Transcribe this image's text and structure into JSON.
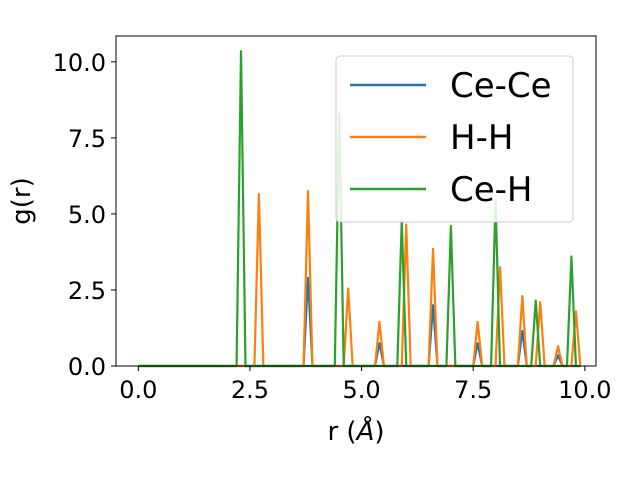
{
  "chart_data": {
    "type": "line",
    "xlabel_main": "r (",
    "xlabel_unit": "Å",
    "xlabel_close": ")",
    "ylabel": "g(r)",
    "xlim": [
      -0.5,
      10.25
    ],
    "ylim": [
      0,
      10.85
    ],
    "grid": false,
    "legend_position": "top-right",
    "x_ticks": [
      0.0,
      2.5,
      5.0,
      7.5,
      10.0
    ],
    "x_tick_labels": [
      "0.0",
      "2.5",
      "5.0",
      "7.5",
      "10.0"
    ],
    "y_ticks": [
      0.0,
      2.5,
      5.0,
      7.5,
      10.0
    ],
    "y_tick_labels": [
      "0.0",
      "2.5",
      "5.0",
      "7.5",
      "10.0"
    ],
    "series": [
      {
        "name": "Ce-Ce",
        "color": "#1f77b4",
        "peaks": [
          [
            3.8,
            2.9
          ],
          [
            5.4,
            0.75
          ],
          [
            6.6,
            2.0
          ],
          [
            7.6,
            0.75
          ],
          [
            8.6,
            1.15
          ],
          [
            9.4,
            0.35
          ]
        ]
      },
      {
        "name": "H-H",
        "color": "#ff7f0e",
        "peaks": [
          [
            2.7,
            5.65
          ],
          [
            3.8,
            5.75
          ],
          [
            4.7,
            2.55
          ],
          [
            5.4,
            1.45
          ],
          [
            6.0,
            4.65
          ],
          [
            6.6,
            3.85
          ],
          [
            7.6,
            1.45
          ],
          [
            8.1,
            3.25
          ],
          [
            8.6,
            2.3
          ],
          [
            9.0,
            2.1
          ],
          [
            9.4,
            0.65
          ],
          [
            9.8,
            1.8
          ]
        ]
      },
      {
        "name": "Ce-H",
        "color": "#2ca02c",
        "peaks": [
          [
            2.3,
            10.35
          ],
          [
            4.5,
            8.3
          ],
          [
            5.9,
            4.8
          ],
          [
            7.0,
            4.6
          ],
          [
            8.0,
            5.45
          ],
          [
            8.9,
            2.15
          ],
          [
            9.7,
            3.6
          ]
        ]
      }
    ]
  }
}
